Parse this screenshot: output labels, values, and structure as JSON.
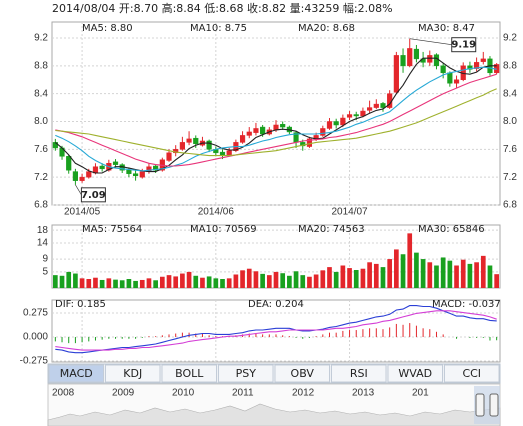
{
  "header": "2014/08/04 开:8.70 高:8.84 低:8.68 收:8.82 量:43259 幅:2.08%",
  "chart_data": [
    {
      "type": "candlestick",
      "categories": [
        null,
        null,
        null,
        null,
        "2014/05",
        null,
        null,
        null,
        null,
        null,
        null,
        null,
        null,
        null,
        null,
        null,
        null,
        null,
        null,
        null,
        null,
        null,
        null,
        null,
        "2014/06",
        null,
        null,
        null,
        null,
        null,
        null,
        null,
        null,
        null,
        null,
        null,
        null,
        null,
        null,
        null,
        null,
        null,
        null,
        null,
        "2014/07",
        null,
        null,
        null,
        null,
        null,
        null,
        null,
        null,
        null,
        null,
        null,
        null,
        null,
        null,
        null,
        null,
        null,
        null,
        null,
        null,
        null,
        null
      ],
      "open": [
        7.7,
        7.62,
        7.5,
        7.28,
        7.15,
        7.2,
        7.26,
        7.36,
        7.3,
        7.42,
        7.38,
        7.3,
        7.25,
        7.2,
        7.28,
        7.36,
        7.3,
        7.44,
        7.55,
        7.6,
        7.7,
        7.76,
        7.66,
        7.72,
        7.6,
        7.56,
        7.52,
        7.58,
        7.7,
        7.8,
        7.84,
        7.92,
        7.82,
        7.88,
        7.96,
        7.92,
        7.84,
        7.7,
        7.64,
        7.76,
        7.8,
        7.9,
        8.0,
        7.95,
        8.06,
        8.1,
        8.08,
        8.16,
        8.2,
        8.26,
        8.2,
        8.42,
        8.95,
        8.8,
        9.04,
        8.9,
        8.85,
        8.96,
        8.8,
        8.7,
        8.55,
        8.6,
        8.8,
        8.76,
        8.86,
        8.9,
        8.7
      ],
      "high": [
        7.75,
        7.65,
        7.52,
        7.32,
        7.25,
        7.32,
        7.4,
        7.4,
        7.45,
        7.46,
        7.4,
        7.34,
        7.3,
        7.32,
        7.4,
        7.38,
        7.48,
        7.6,
        7.66,
        7.78,
        7.86,
        7.8,
        7.78,
        7.74,
        7.64,
        7.6,
        7.62,
        7.74,
        7.86,
        7.92,
        7.98,
        7.95,
        7.92,
        8.02,
        8.0,
        7.94,
        7.86,
        7.74,
        7.78,
        7.84,
        7.94,
        8.05,
        8.04,
        8.1,
        8.15,
        8.14,
        8.2,
        8.3,
        8.32,
        8.28,
        8.45,
        9.0,
        9.05,
        9.19,
        9.1,
        9.0,
        9.02,
        8.98,
        8.84,
        8.72,
        8.66,
        8.85,
        8.86,
        8.92,
        9.0,
        8.94,
        8.84
      ],
      "low": [
        7.58,
        7.45,
        7.25,
        7.09,
        7.12,
        7.18,
        7.24,
        7.28,
        7.28,
        7.34,
        7.26,
        7.2,
        7.15,
        7.18,
        7.25,
        7.26,
        7.28,
        7.42,
        7.5,
        7.58,
        7.66,
        7.62,
        7.64,
        7.56,
        7.5,
        7.46,
        7.5,
        7.56,
        7.68,
        7.76,
        7.8,
        7.78,
        7.8,
        7.85,
        7.88,
        7.82,
        7.62,
        7.58,
        7.62,
        7.72,
        7.78,
        7.88,
        7.9,
        7.92,
        8.02,
        8.02,
        8.06,
        8.12,
        8.18,
        8.14,
        8.18,
        8.4,
        8.7,
        8.78,
        8.85,
        8.78,
        8.8,
        8.75,
        8.62,
        8.5,
        8.48,
        8.58,
        8.7,
        8.72,
        8.82,
        8.66,
        8.68
      ],
      "close": [
        7.62,
        7.5,
        7.3,
        7.15,
        7.2,
        7.28,
        7.35,
        7.32,
        7.4,
        7.38,
        7.3,
        7.25,
        7.22,
        7.28,
        7.35,
        7.3,
        7.45,
        7.55,
        7.6,
        7.7,
        7.75,
        7.68,
        7.72,
        7.6,
        7.55,
        7.52,
        7.58,
        7.7,
        7.8,
        7.85,
        7.9,
        7.82,
        7.88,
        7.95,
        7.92,
        7.85,
        7.7,
        7.65,
        7.75,
        7.8,
        7.9,
        8.0,
        7.95,
        8.05,
        8.1,
        8.08,
        8.15,
        8.2,
        8.25,
        8.2,
        8.4,
        8.95,
        8.8,
        9.05,
        8.9,
        8.85,
        8.95,
        8.8,
        8.7,
        8.55,
        8.6,
        8.8,
        8.75,
        8.85,
        8.9,
        8.7,
        8.82
      ],
      "up_color": "#e3262b",
      "down_color": "#19a01f",
      "series": [
        {
          "name": "MA5: 8.80",
          "color": "#222222",
          "values": [
            7.7,
            7.62,
            7.52,
            7.4,
            7.35,
            7.29,
            7.26,
            7.26,
            7.31,
            7.35,
            7.35,
            7.33,
            7.31,
            7.29,
            7.28,
            7.28,
            7.32,
            7.37,
            7.45,
            7.52,
            7.61,
            7.66,
            7.69,
            7.69,
            7.66,
            7.61,
            7.59,
            7.59,
            7.63,
            7.69,
            7.77,
            7.81,
            7.85,
            7.88,
            7.89,
            7.88,
            7.86,
            7.81,
            7.77,
            7.75,
            7.76,
            7.82,
            7.88,
            7.94,
            8.0,
            8.04,
            8.07,
            8.12,
            8.16,
            8.18,
            8.25,
            8.4,
            8.52,
            8.68,
            8.82,
            8.91,
            8.91,
            8.91,
            8.84,
            8.77,
            8.72,
            8.69,
            8.68,
            8.71,
            8.78,
            8.8,
            8.8
          ]
        },
        {
          "name": "MA10: 8.75",
          "color": "#27a9d6",
          "values": [
            7.8,
            7.76,
            7.71,
            7.65,
            7.58,
            7.5,
            7.44,
            7.39,
            7.35,
            7.33,
            7.32,
            7.31,
            7.3,
            7.29,
            7.3,
            7.31,
            7.32,
            7.34,
            7.37,
            7.4,
            7.45,
            7.5,
            7.54,
            7.57,
            7.6,
            7.62,
            7.63,
            7.64,
            7.64,
            7.66,
            7.69,
            7.72,
            7.74,
            7.77,
            7.79,
            7.81,
            7.82,
            7.82,
            7.82,
            7.82,
            7.83,
            7.84,
            7.86,
            7.89,
            7.92,
            7.96,
            7.99,
            8.03,
            8.07,
            8.1,
            8.14,
            8.22,
            8.3,
            8.38,
            8.45,
            8.51,
            8.57,
            8.62,
            8.67,
            8.7,
            8.72,
            8.74,
            8.76,
            8.77,
            8.78,
            8.77,
            8.75
          ]
        },
        {
          "name": "MA20: 8.68",
          "color": "#e8357a",
          "values": [
            7.88,
            7.86,
            7.84,
            7.81,
            7.78,
            7.74,
            7.7,
            7.66,
            7.62,
            7.58,
            7.54,
            7.5,
            7.46,
            7.43,
            7.4,
            7.38,
            7.37,
            7.36,
            7.36,
            7.37,
            7.38,
            7.4,
            7.42,
            7.44,
            7.46,
            7.48,
            7.5,
            7.52,
            7.54,
            7.56,
            7.58,
            7.6,
            7.62,
            7.64,
            7.66,
            7.68,
            7.7,
            7.72,
            7.73,
            7.74,
            7.75,
            7.77,
            7.78,
            7.8,
            7.82,
            7.84,
            7.87,
            7.9,
            7.93,
            7.96,
            8.0,
            8.05,
            8.1,
            8.15,
            8.2,
            8.25,
            8.3,
            8.35,
            8.4,
            8.44,
            8.48,
            8.52,
            8.56,
            8.59,
            8.62,
            8.65,
            8.68
          ]
        },
        {
          "name": "MA30: 8.47",
          "color": "#9fb12d",
          "values": [
            7.87,
            7.86,
            7.85,
            7.84,
            7.83,
            7.82,
            7.8,
            7.78,
            7.76,
            7.74,
            7.72,
            7.7,
            7.68,
            7.66,
            7.64,
            7.62,
            7.6,
            7.58,
            7.56,
            7.55,
            7.54,
            7.53,
            7.52,
            7.51,
            7.51,
            7.51,
            7.51,
            7.52,
            7.53,
            7.54,
            7.55,
            7.56,
            7.57,
            7.58,
            7.6,
            7.62,
            7.64,
            7.66,
            7.68,
            7.7,
            7.71,
            7.72,
            7.73,
            7.74,
            7.75,
            7.76,
            7.78,
            7.8,
            7.82,
            7.84,
            7.86,
            7.89,
            7.92,
            7.95,
            7.98,
            8.02,
            8.06,
            8.1,
            8.14,
            8.18,
            8.22,
            8.26,
            8.3,
            8.34,
            8.38,
            8.43,
            8.47
          ]
        }
      ],
      "annotations": [
        "7.09",
        "9.19"
      ],
      "ylim": [
        6.8,
        9.43
      ],
      "yticks": [
        6.8,
        7.2,
        7.6,
        {
          "value": 8,
          "label": "8.0"
        },
        8.4,
        8.8,
        9.2
      ],
      "grid": true
    },
    {
      "type": "volume",
      "values": [
        4.0,
        3.8,
        5.0,
        4.5,
        3.0,
        2.8,
        3.2,
        2.5,
        3.0,
        2.6,
        2.4,
        2.8,
        2.2,
        2.5,
        3.0,
        2.4,
        3.5,
        4.0,
        3.6,
        4.5,
        5.0,
        3.8,
        3.2,
        3.6,
        3.0,
        2.8,
        3.0,
        4.2,
        5.5,
        6.0,
        5.2,
        4.4,
        4.0,
        5.0,
        4.6,
        3.8,
        5.2,
        4.0,
        3.5,
        4.2,
        5.5,
        6.5,
        5.0,
        7.0,
        6.2,
        5.6,
        6.0,
        8.0,
        7.5,
        6.5,
        9.0,
        12.0,
        10.5,
        17.0,
        11.0,
        9.0,
        8.0,
        7.0,
        9.5,
        8.5,
        7.0,
        8.8,
        7.5,
        8.0,
        10.0,
        7.0,
        4.3
      ],
      "legend": [
        {
          "name": "MA5: 75564",
          "color": "#222222"
        },
        {
          "name": "MA10: 70569",
          "color": "#27a9d6"
        },
        {
          "name": "MA20: 74563",
          "color": "#e8357a"
        },
        {
          "name": "MA30: 65846",
          "color": "#9fb12d"
        }
      ],
      "ylim": [
        0,
        19.6
      ],
      "yticks": [
        5,
        9,
        14,
        18
      ],
      "grid": true
    },
    {
      "type": "macd",
      "bar_name": "MACD: -0.037",
      "values": [
        -0.05,
        -0.06,
        -0.07,
        -0.07,
        -0.06,
        -0.05,
        -0.04,
        -0.03,
        -0.02,
        -0.02,
        -0.02,
        -0.02,
        -0.02,
        -0.01,
        0.01,
        0.01,
        0.02,
        0.03,
        0.04,
        0.05,
        0.05,
        0.04,
        0.04,
        0.02,
        0.01,
        0.01,
        0.01,
        0.02,
        0.03,
        0.04,
        0.04,
        0.03,
        0.03,
        0.03,
        0.02,
        0.01,
        -0.01,
        -0.02,
        -0.01,
        0.01,
        0.03,
        0.05,
        0.05,
        0.07,
        0.08,
        0.08,
        0.09,
        0.1,
        0.1,
        0.09,
        0.11,
        0.15,
        0.14,
        0.16,
        0.13,
        0.1,
        0.09,
        0.06,
        0.03,
        0.0,
        -0.02,
        0.0,
        -0.01,
        -0.01,
        -0.01,
        -0.04,
        -0.037
      ],
      "series": [
        {
          "name": "DIF: 0.185",
          "color": "#2b3fd6",
          "values": [
            -0.14,
            -0.15,
            -0.17,
            -0.18,
            -0.18,
            -0.17,
            -0.16,
            -0.15,
            -0.14,
            -0.13,
            -0.12,
            -0.12,
            -0.11,
            -0.1,
            -0.09,
            -0.08,
            -0.06,
            -0.04,
            -0.02,
            0.0,
            0.02,
            0.03,
            0.04,
            0.04,
            0.03,
            0.03,
            0.03,
            0.04,
            0.05,
            0.07,
            0.08,
            0.08,
            0.09,
            0.1,
            0.1,
            0.1,
            0.08,
            0.07,
            0.07,
            0.08,
            0.09,
            0.11,
            0.12,
            0.14,
            0.16,
            0.17,
            0.19,
            0.21,
            0.23,
            0.24,
            0.26,
            0.31,
            0.32,
            0.36,
            0.36,
            0.35,
            0.35,
            0.33,
            0.3,
            0.27,
            0.24,
            0.24,
            0.22,
            0.21,
            0.21,
            0.19,
            0.185
          ]
        },
        {
          "name": "DEA: 0.204",
          "color": "#d43fd6",
          "values": [
            -0.11,
            -0.12,
            -0.13,
            -0.14,
            -0.15,
            -0.15,
            -0.15,
            -0.15,
            -0.15,
            -0.14,
            -0.14,
            -0.13,
            -0.13,
            -0.12,
            -0.12,
            -0.11,
            -0.1,
            -0.09,
            -0.08,
            -0.07,
            -0.05,
            -0.04,
            -0.03,
            -0.02,
            -0.01,
            0.0,
            0.01,
            0.01,
            0.02,
            0.03,
            0.04,
            0.05,
            0.06,
            0.06,
            0.07,
            0.08,
            0.08,
            0.08,
            0.08,
            0.08,
            0.08,
            0.09,
            0.1,
            0.1,
            0.11,
            0.12,
            0.14,
            0.15,
            0.16,
            0.18,
            0.19,
            0.21,
            0.23,
            0.25,
            0.27,
            0.28,
            0.29,
            0.3,
            0.3,
            0.3,
            0.29,
            0.28,
            0.27,
            0.26,
            0.25,
            0.23,
            0.204
          ]
        }
      ],
      "ylim": [
        -0.286,
        0.424
      ],
      "yticks": [
        0.275,
        {
          "value": 0,
          "label": "0.000"
        },
        -0.275
      ],
      "grid": true
    }
  ],
  "tabs": [
    "MACD",
    "KDJ",
    "BOLL",
    "PSY",
    "OBV",
    "RSI",
    "WVAD",
    "CCI"
  ],
  "timeline": [
    "2008",
    "2009",
    "2010",
    "2011",
    "2012",
    "2013",
    "201"
  ]
}
